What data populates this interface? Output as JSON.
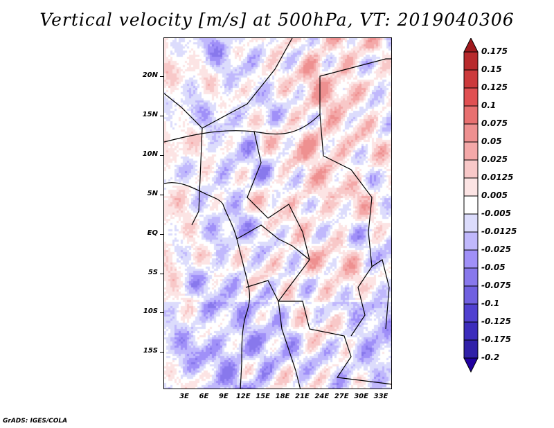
{
  "title": "Vertical velocity [m/s] at 500hPa, VT: 2019040306",
  "credit": "GrADS: IGES/COLA",
  "map": {
    "variable": "Vertical velocity",
    "units": "m/s",
    "level": "500hPa",
    "valid_time": "2019040306",
    "region": "Central Africa",
    "lat_range": [
      "17S",
      "24N"
    ],
    "lon_range": [
      "1E",
      "35E"
    ],
    "y_ticks": [
      "20N",
      "15N",
      "10N",
      "5N",
      "EQ",
      "5S",
      "10S",
      "15S"
    ],
    "x_ticks": [
      "3E",
      "6E",
      "9E",
      "12E",
      "15E",
      "18E",
      "21E",
      "24E",
      "27E",
      "30E",
      "33E"
    ]
  },
  "colorbar": {
    "labels": [
      "0.175",
      "0.15",
      "0.125",
      "0.1",
      "0.075",
      "0.05",
      "0.025",
      "0.0125",
      "0.005",
      "-0.005",
      "-0.0125",
      "-0.025",
      "-0.05",
      "-0.075",
      "-0.1",
      "-0.125",
      "-0.175",
      "-0.2"
    ],
    "colors": [
      "#a01a1e",
      "#b82a2c",
      "#cc3a3c",
      "#e05052",
      "#e87070",
      "#ee9090",
      "#f4a8a8",
      "#f8c8c8",
      "#fce4e4",
      "#ffffff",
      "#dcdcfc",
      "#c0b8fc",
      "#a090f8",
      "#8878ec",
      "#7060e0",
      "#5040d0",
      "#3c2cbc",
      "#3020a8",
      "#2000a0"
    ]
  }
}
